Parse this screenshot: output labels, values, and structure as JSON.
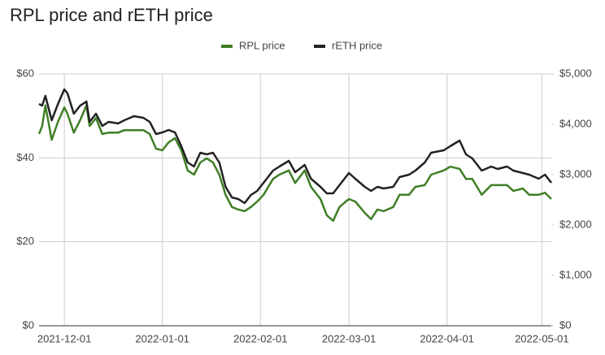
{
  "chart_data": {
    "type": "line",
    "title": "RPL price and rETH price",
    "x": [
      "2021-11-23",
      "2021-11-24",
      "2021-11-25",
      "2021-11-27",
      "2021-11-29",
      "2021-12-01",
      "2021-12-02",
      "2021-12-04",
      "2021-12-06",
      "2021-12-08",
      "2021-12-09",
      "2021-12-11",
      "2021-12-13",
      "2021-12-15",
      "2021-12-18",
      "2021-12-20",
      "2021-12-23",
      "2021-12-26",
      "2021-12-28",
      "2021-12-30",
      "2022-01-01",
      "2022-01-03",
      "2022-01-05",
      "2022-01-07",
      "2022-01-09",
      "2022-01-11",
      "2022-01-13",
      "2022-01-15",
      "2022-01-17",
      "2022-01-19",
      "2022-01-21",
      "2022-01-23",
      "2022-01-25",
      "2022-01-27",
      "2022-01-29",
      "2022-01-31",
      "2022-02-02",
      "2022-02-05",
      "2022-02-07",
      "2022-02-10",
      "2022-02-12",
      "2022-02-15",
      "2022-02-17",
      "2022-02-20",
      "2022-02-22",
      "2022-02-24",
      "2022-02-26",
      "2022-03-01",
      "2022-03-03",
      "2022-03-06",
      "2022-03-08",
      "2022-03-10",
      "2022-03-12",
      "2022-03-15",
      "2022-03-17",
      "2022-03-20",
      "2022-03-22",
      "2022-03-25",
      "2022-03-27",
      "2022-03-31",
      "2022-04-02",
      "2022-04-05",
      "2022-04-07",
      "2022-04-09",
      "2022-04-12",
      "2022-04-15",
      "2022-04-17",
      "2022-04-20",
      "2022-04-22",
      "2022-04-25",
      "2022-04-27",
      "2022-04-30",
      "2022-05-02",
      "2022-05-04"
    ],
    "series": [
      {
        "name": "RPL price",
        "color": "#3f7f26",
        "values": [
          45.7,
          47.6,
          52.5,
          44.3,
          48.6,
          52,
          50.5,
          46,
          49,
          52.5,
          47.6,
          49.5,
          45.7,
          46,
          46,
          46.6,
          46.6,
          46.6,
          45.7,
          42.2,
          41.8,
          43.7,
          44.7,
          41.8,
          37,
          36,
          38.9,
          39.9,
          38.9,
          36,
          31.2,
          28.3,
          27.7,
          27.3,
          28.3,
          29.6,
          31.2,
          35,
          36,
          37,
          34,
          37,
          33.1,
          30.2,
          26.3,
          25,
          28.3,
          30.2,
          29.6,
          26.9,
          25.4,
          27.7,
          27.3,
          28.3,
          31.2,
          31.2,
          33.1,
          33.5,
          36,
          37,
          37.9,
          37.4,
          35,
          35,
          31.2,
          33.5,
          33.5,
          33.5,
          32.1,
          32.7,
          31.2,
          31.2,
          31.7,
          30.2
        ]
      },
      {
        "name": "rETH price",
        "color": "#222222",
        "axis": "y2",
        "values": [
          4403,
          4371,
          4565,
          4081,
          4403,
          4694,
          4613,
          4210,
          4371,
          4452,
          4048,
          4210,
          3968,
          4048,
          4016,
          4081,
          4161,
          4129,
          4048,
          3806,
          3839,
          3887,
          3839,
          3565,
          3242,
          3161,
          3435,
          3403,
          3435,
          3242,
          2758,
          2548,
          2516,
          2435,
          2597,
          2677,
          2839,
          3081,
          3161,
          3274,
          3048,
          3194,
          2919,
          2758,
          2629,
          2629,
          2790,
          3032,
          2919,
          2758,
          2677,
          2758,
          2726,
          2758,
          2952,
          3000,
          3081,
          3242,
          3435,
          3484,
          3565,
          3677,
          3403,
          3323,
          3081,
          3161,
          3113,
          3161,
          3081,
          3032,
          3000,
          2919,
          3000,
          2839
        ]
      }
    ],
    "xlim": [
      "2021-11-23",
      "2022-05-04"
    ],
    "xticks": [
      "2021-12-01",
      "2022-01-01",
      "2022-02-01",
      "2022-03-01",
      "2022-04-01",
      "2022-05-01"
    ],
    "ylim": [
      0,
      60
    ],
    "yticks": [
      {
        "value": 0,
        "label": "$0"
      },
      {
        "value": 20,
        "label": "$20"
      },
      {
        "value": 40,
        "label": "$40"
      },
      {
        "value": 60,
        "label": "$60"
      }
    ],
    "y2lim": [
      0,
      5000
    ],
    "y2ticks": [
      {
        "value": 0,
        "label": "$0"
      },
      {
        "value": 1000,
        "label": "$1,000"
      },
      {
        "value": 2000,
        "label": "$2,000"
      },
      {
        "value": 3000,
        "label": "$3,000"
      },
      {
        "value": 4000,
        "label": "$4,000"
      },
      {
        "value": 5000,
        "label": "$5,000"
      }
    ],
    "grid": true,
    "legend": "top"
  }
}
